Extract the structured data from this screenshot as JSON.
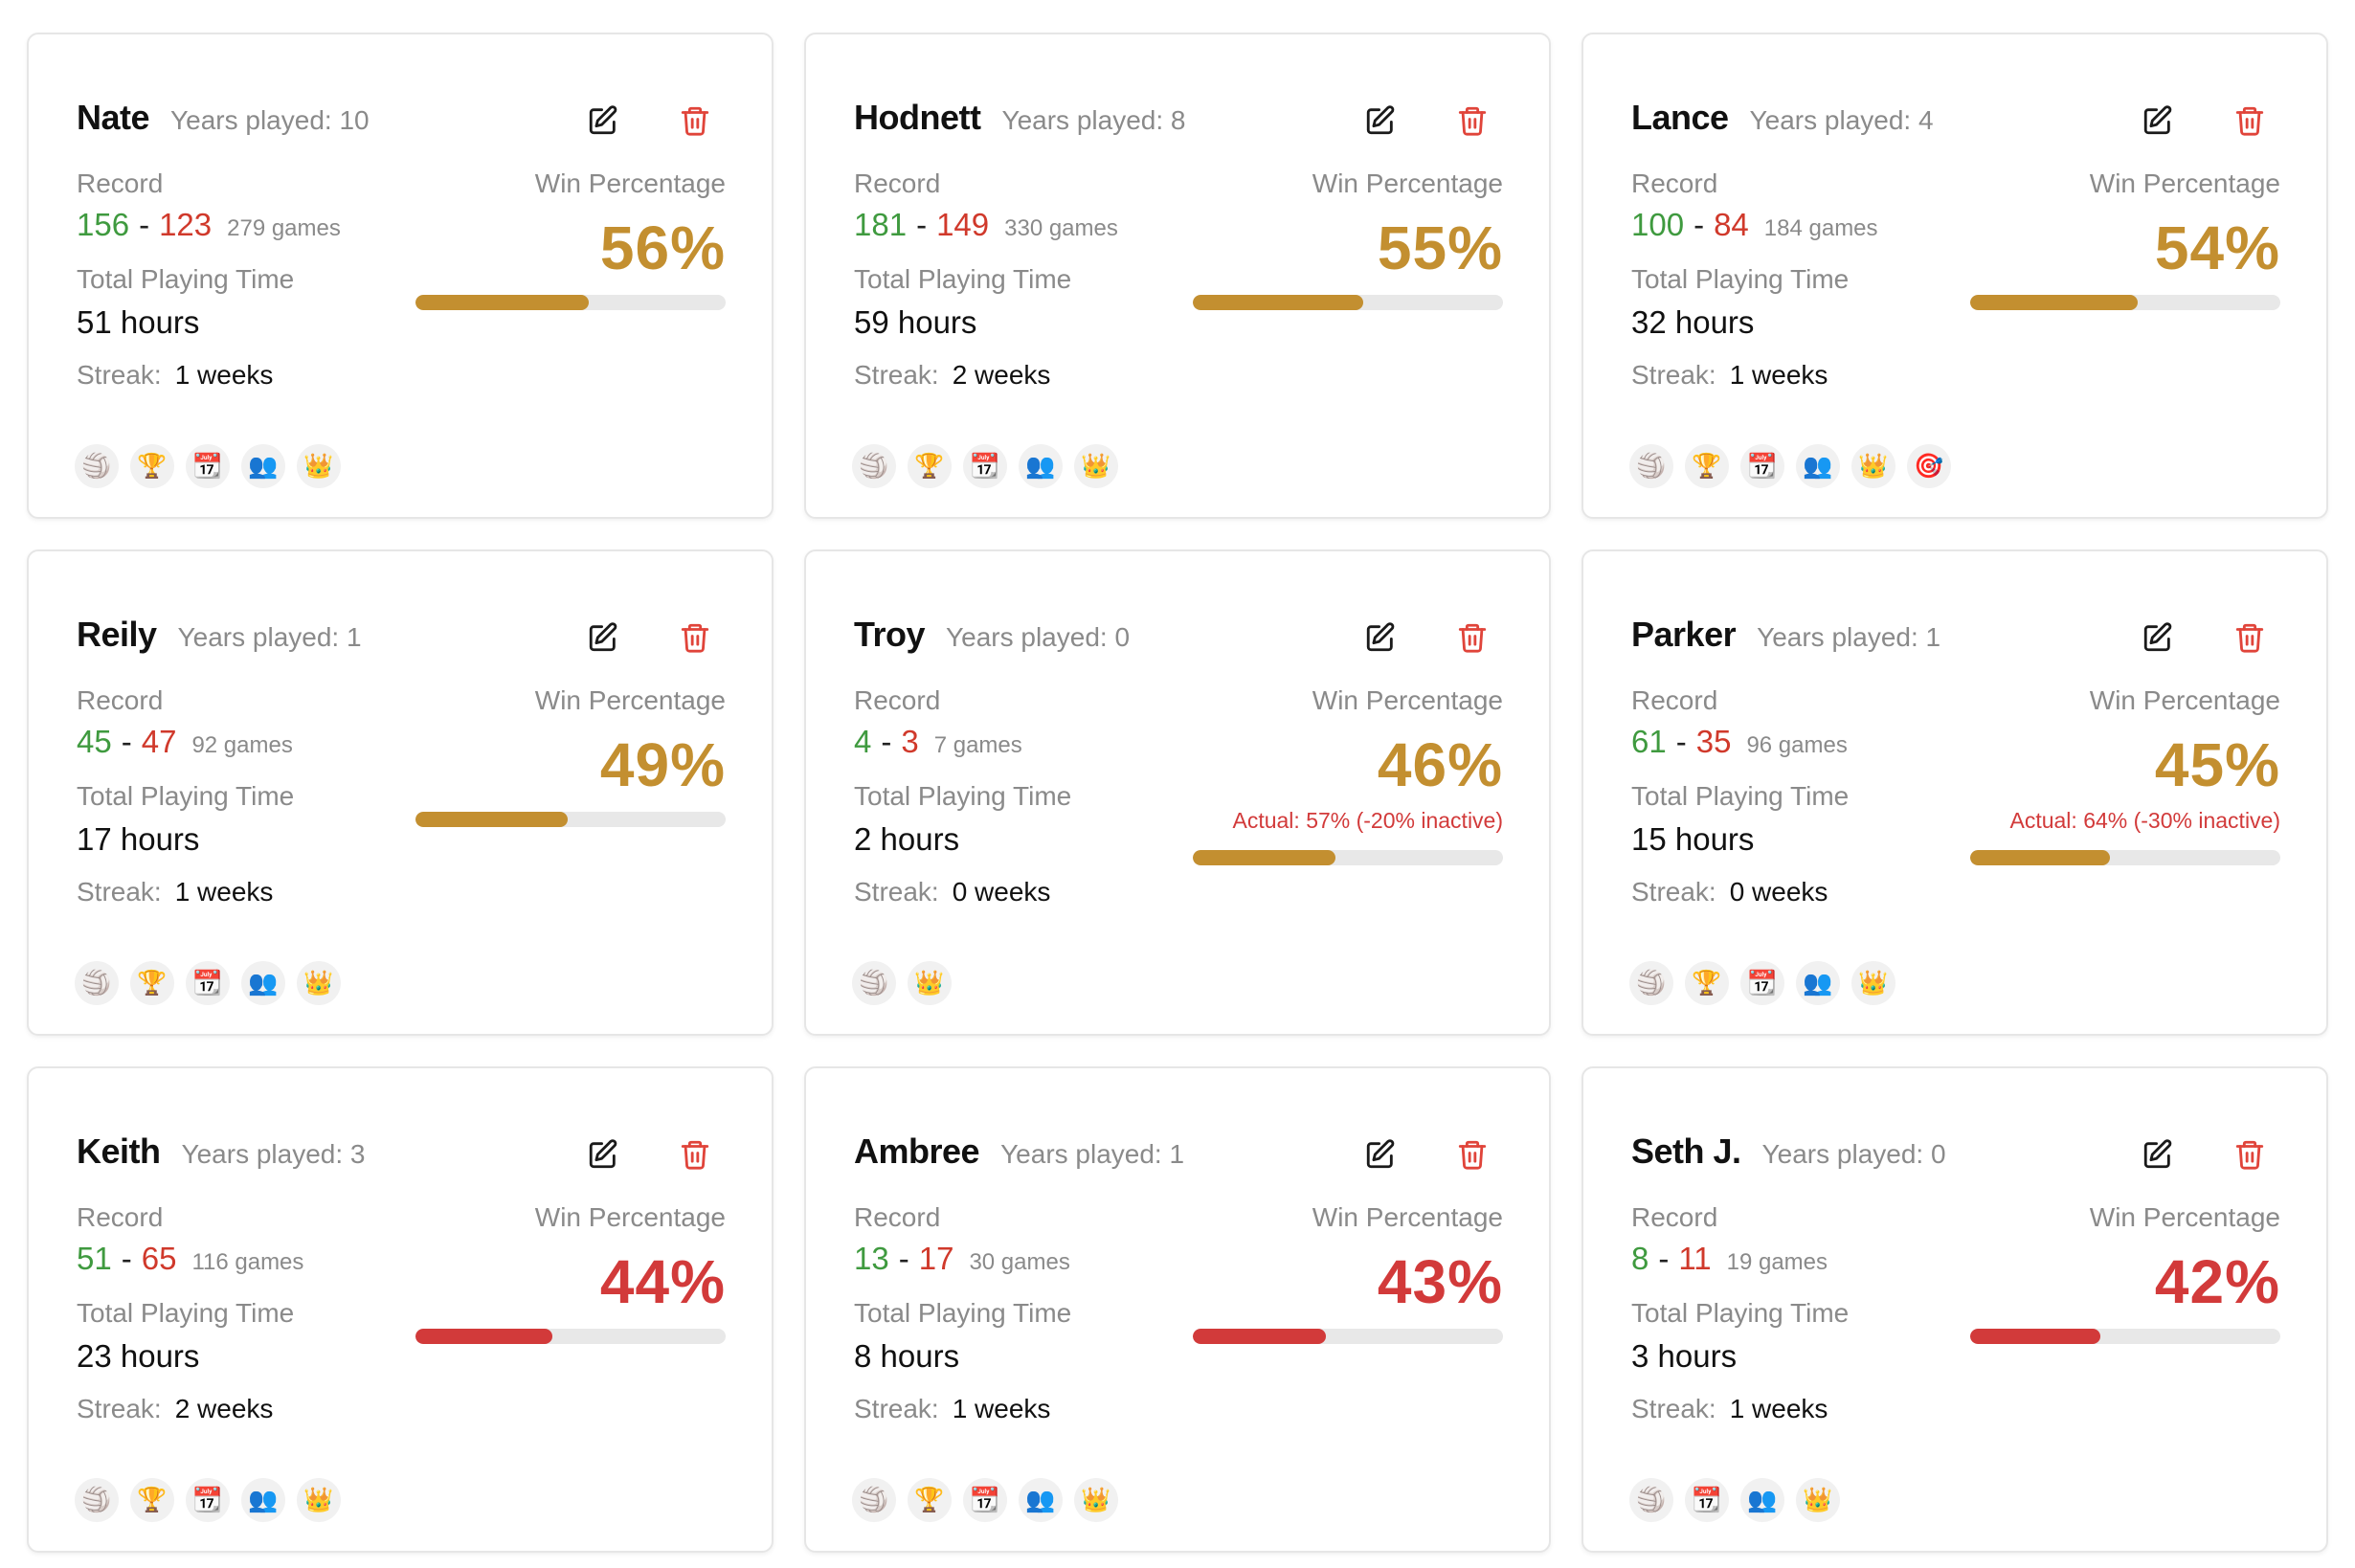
{
  "labels": {
    "record": "Record",
    "total_playing_time": "Total Playing Time",
    "streak": "Streak:",
    "win_percentage": "Win Percentage"
  },
  "colors": {
    "gold": "#c38f30",
    "red": "#d23a3a",
    "track": "#e8e8e8",
    "win": "#3f9a3f",
    "loss": "#d0392b"
  },
  "badge_glyphs": {
    "volleyball": "🏐",
    "trophy": "🏆",
    "calendar": "📆",
    "people": "👥",
    "crown": "👑",
    "target": "🎯"
  },
  "players": [
    {
      "name": "Nate",
      "years": "Years played: 10",
      "wins": "156",
      "losses": "123",
      "games": "279 games",
      "hours": "51 hours",
      "streak": "1 weeks",
      "pct": "56%",
      "fill": 0.56,
      "color": "gold",
      "actual": "",
      "badges": [
        "volleyball",
        "trophy",
        "calendar",
        "people",
        "crown"
      ]
    },
    {
      "name": "Hodnett",
      "years": "Years played: 8",
      "wins": "181",
      "losses": "149",
      "games": "330 games",
      "hours": "59 hours",
      "streak": "2 weeks",
      "pct": "55%",
      "fill": 0.55,
      "color": "gold",
      "actual": "",
      "badges": [
        "volleyball",
        "trophy",
        "calendar",
        "people",
        "crown"
      ]
    },
    {
      "name": "Lance",
      "years": "Years played: 4",
      "wins": "100",
      "losses": "84",
      "games": "184 games",
      "hours": "32 hours",
      "streak": "1 weeks",
      "pct": "54%",
      "fill": 0.54,
      "color": "gold",
      "actual": "",
      "badges": [
        "volleyball",
        "trophy",
        "calendar",
        "people",
        "crown",
        "target"
      ]
    },
    {
      "name": "Reily",
      "years": "Years played: 1",
      "wins": "45",
      "losses": "47",
      "games": "92 games",
      "hours": "17 hours",
      "streak": "1 weeks",
      "pct": "49%",
      "fill": 0.49,
      "color": "gold",
      "actual": "",
      "badges": [
        "volleyball",
        "trophy",
        "calendar",
        "people",
        "crown"
      ]
    },
    {
      "name": "Troy",
      "years": "Years played: 0",
      "wins": "4",
      "losses": "3",
      "games": "7 games",
      "hours": "2 hours",
      "streak": "0 weeks",
      "pct": "46%",
      "fill": 0.46,
      "color": "gold",
      "actual": "Actual: 57% (-20% inactive)",
      "badges": [
        "volleyball",
        "crown"
      ]
    },
    {
      "name": "Parker",
      "years": "Years played: 1",
      "wins": "61",
      "losses": "35",
      "games": "96 games",
      "hours": "15 hours",
      "streak": "0 weeks",
      "pct": "45%",
      "fill": 0.45,
      "color": "gold",
      "actual": "Actual: 64% (-30% inactive)",
      "badges": [
        "volleyball",
        "trophy",
        "calendar",
        "people",
        "crown"
      ]
    },
    {
      "name": "Keith",
      "years": "Years played: 3",
      "wins": "51",
      "losses": "65",
      "games": "116 games",
      "hours": "23 hours",
      "streak": "2 weeks",
      "pct": "44%",
      "fill": 0.44,
      "color": "red",
      "actual": "",
      "badges": [
        "volleyball",
        "trophy",
        "calendar",
        "people",
        "crown"
      ]
    },
    {
      "name": "Ambree",
      "years": "Years played: 1",
      "wins": "13",
      "losses": "17",
      "games": "30 games",
      "hours": "8 hours",
      "streak": "1 weeks",
      "pct": "43%",
      "fill": 0.43,
      "color": "red",
      "actual": "",
      "badges": [
        "volleyball",
        "trophy",
        "calendar",
        "people",
        "crown"
      ]
    },
    {
      "name": "Seth J.",
      "years": "Years played: 0",
      "wins": "8",
      "losses": "11",
      "games": "19 games",
      "hours": "3 hours",
      "streak": "1 weeks",
      "pct": "42%",
      "fill": 0.42,
      "color": "red",
      "actual": "",
      "badges": [
        "volleyball",
        "calendar",
        "people",
        "crown"
      ]
    }
  ]
}
